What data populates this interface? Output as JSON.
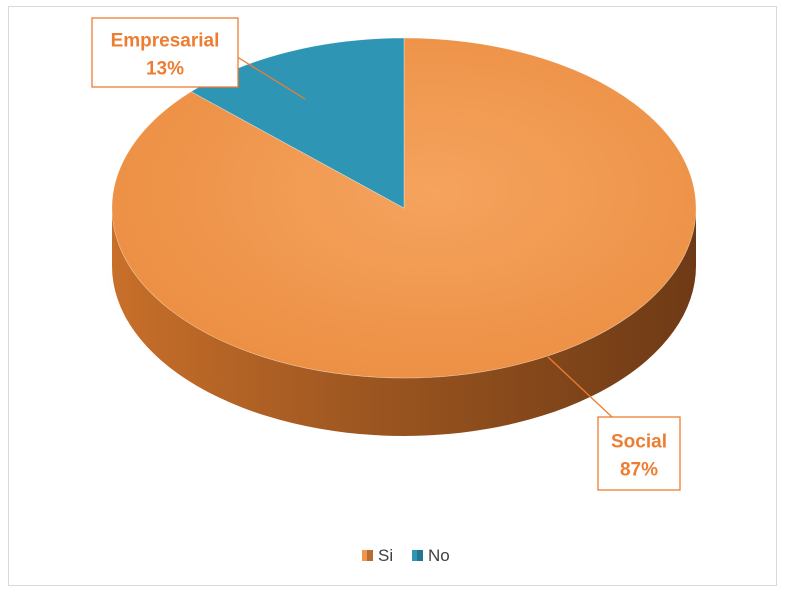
{
  "chart_data": {
    "type": "pie",
    "style": "3d",
    "title": "",
    "slices": [
      {
        "label": "Social",
        "value": 87,
        "display": "87%",
        "legend": "Si",
        "color": "#f0954a",
        "side_dark": "#8a4a1e",
        "side_mid": "#c86f2a"
      },
      {
        "label": "Empresarial",
        "value": 13,
        "display": "13%",
        "legend": "No",
        "color": "#2e95b5",
        "side_dark": "#1c5d72",
        "side_mid": "#257d99"
      }
    ],
    "legend": {
      "position": "bottom",
      "entries": [
        "Si",
        "No"
      ]
    },
    "callout_color": "#ed7d31"
  }
}
